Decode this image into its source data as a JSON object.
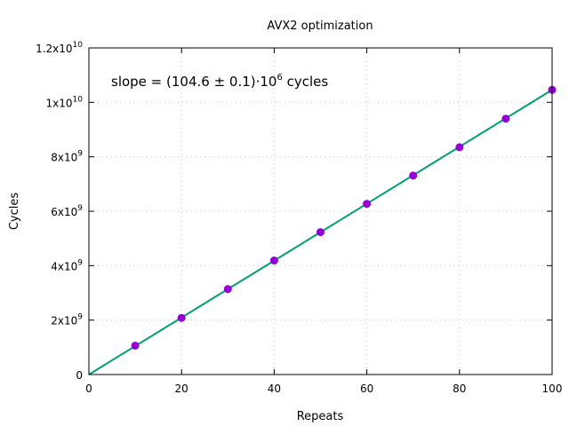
{
  "colors": {
    "fit_line": "#009e73",
    "points": "#9400d3"
  },
  "chart_data": {
    "type": "scatter",
    "title": "AVX2 optimization",
    "xlabel": "Repeats",
    "ylabel": "Cycles",
    "annotation": {
      "prefix": "slope = (104.6 ± 0.1)·10",
      "exponent": "6",
      "suffix": " cycles"
    },
    "xlim": [
      0,
      100
    ],
    "ylim": [
      0,
      12000000000
    ],
    "grid": true,
    "x_ticks": [
      {
        "value": 0,
        "label": "0"
      },
      {
        "value": 20,
        "label": "20"
      },
      {
        "value": 40,
        "label": "40"
      },
      {
        "value": 60,
        "label": "60"
      },
      {
        "value": 80,
        "label": "80"
      },
      {
        "value": 100,
        "label": "100"
      }
    ],
    "y_ticks": [
      {
        "value": 0,
        "mant": "0",
        "exp": ""
      },
      {
        "value": 2000000000,
        "mant": "2x10",
        "exp": "9"
      },
      {
        "value": 4000000000,
        "mant": "4x10",
        "exp": "9"
      },
      {
        "value": 6000000000,
        "mant": "6x10",
        "exp": "9"
      },
      {
        "value": 8000000000,
        "mant": "8x10",
        "exp": "9"
      },
      {
        "value": 10000000000,
        "mant": "1x10",
        "exp": "10"
      },
      {
        "value": 12000000000,
        "mant": "1.2x10",
        "exp": "10"
      }
    ],
    "series": [
      {
        "x": [
          10,
          20,
          30,
          40,
          50,
          60,
          70,
          80,
          90,
          100
        ],
        "y": [
          1060000000,
          2080000000,
          3140000000,
          4190000000,
          5230000000,
          6270000000,
          7310000000,
          8350000000,
          9400000000,
          10460000000
        ]
      }
    ],
    "fit": {
      "slope": 104600000,
      "intercept": 0
    }
  }
}
